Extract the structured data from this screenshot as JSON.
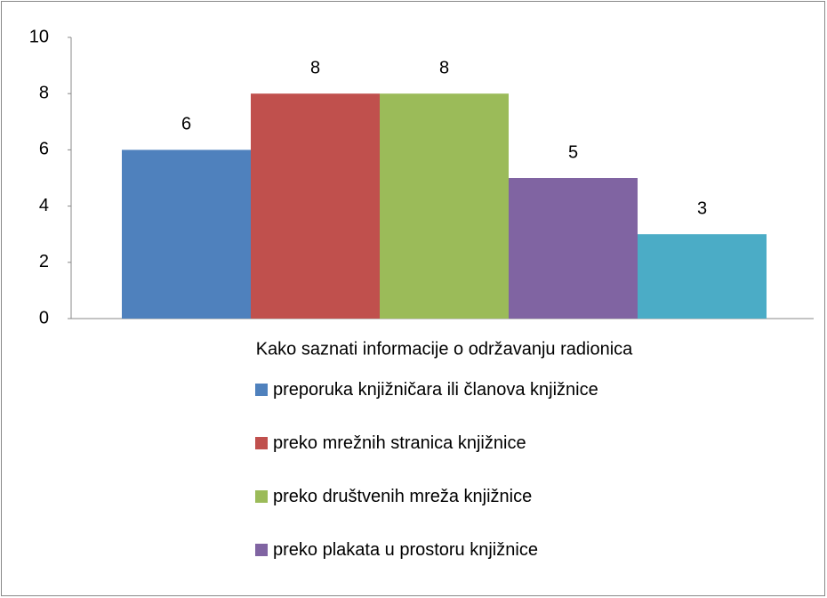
{
  "chart_data": {
    "type": "bar",
    "categories": [
      "Kako saznati informacije o održavanju radionica"
    ],
    "series": [
      {
        "name": "preporuka knjižničara ili članova knjižnice",
        "color": "#4f81bd",
        "values": [
          6
        ]
      },
      {
        "name": "preko mrežnih stranica knjižnice",
        "color": "#c0504d",
        "values": [
          8
        ]
      },
      {
        "name": "preko društvenih mreža knjižnice",
        "color": "#9bbb59",
        "values": [
          8
        ]
      },
      {
        "name": "preko plakata u prostoru knjižnice",
        "color": "#8064a2",
        "values": [
          5
        ]
      },
      {
        "color": "#4bacc6",
        "values": [
          3
        ]
      }
    ],
    "ylim": [
      0,
      10
    ],
    "yticks": [
      0,
      2,
      4,
      6,
      8,
      10
    ],
    "grid": false,
    "legend": "bottom"
  }
}
